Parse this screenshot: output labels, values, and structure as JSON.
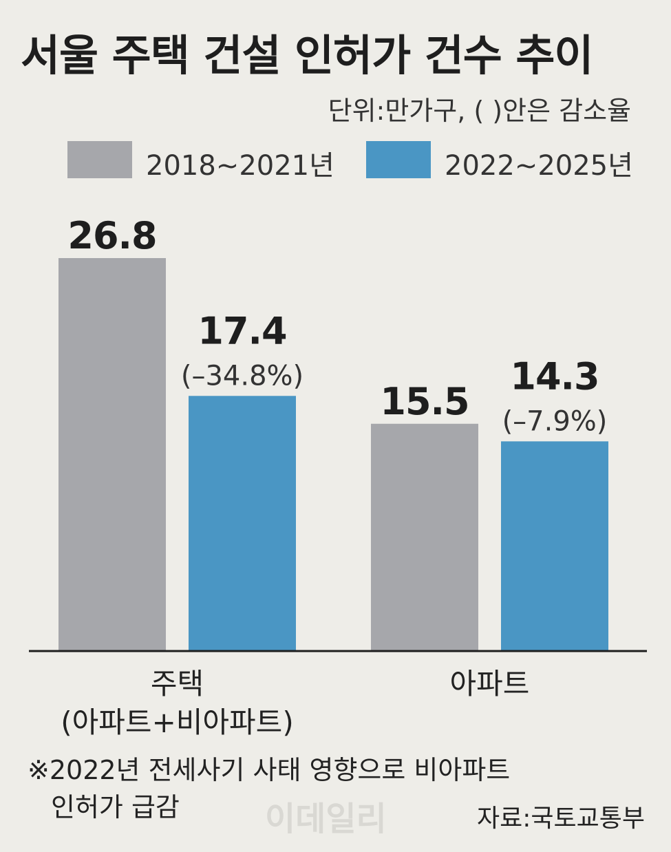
{
  "title": "서울 주택 건설 인허가 건수 추이",
  "unit_note": "단위:만가구, (  )안은 감소율",
  "colors": {
    "series1": "#a6a7ab",
    "series2": "#4a96c4",
    "axis": "#1e1e1e",
    "text": "#222222"
  },
  "chart_data": {
    "type": "bar",
    "categories": [
      "주택\n(아파트+비아파트)",
      "아파트"
    ],
    "series": [
      {
        "name": "2018~2021년",
        "values": [
          26.8,
          15.5
        ],
        "labels": [
          "26.8",
          "15.5"
        ],
        "changes": [
          "",
          ""
        ]
      },
      {
        "name": "2022~2025년",
        "values": [
          17.4,
          14.3
        ],
        "labels": [
          "17.4",
          "14.3"
        ],
        "changes": [
          "(–34.8%)",
          "(–7.9%)"
        ]
      }
    ],
    "ylim": [
      0,
      26.8
    ],
    "legend": "top",
    "grid": false
  },
  "footnote": {
    "line1": "※2022년 전세사기 사태 영향으로 비아파트",
    "line2": "인허가 급감"
  },
  "watermark": "이데일리",
  "source": "자료:국토교통부"
}
